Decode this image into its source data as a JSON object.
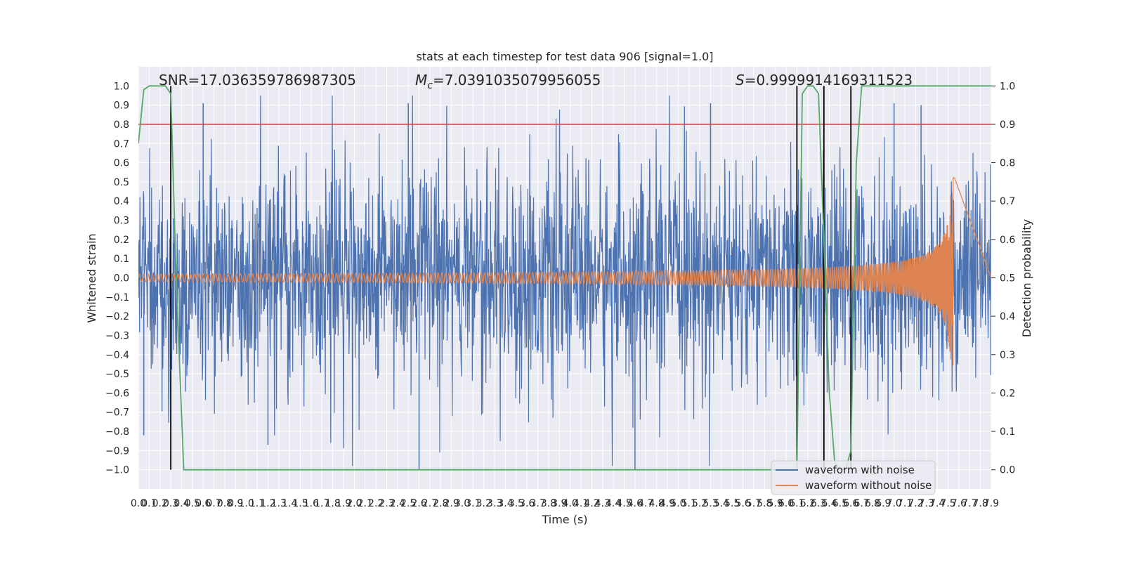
{
  "chart_data": {
    "type": "line",
    "title": "stats at each timestep for test data 906 [signal=1.0]",
    "xlabel": "Time (s)",
    "ylabel_left": "Whitened strain",
    "ylabel_right": "Detection probability",
    "xlim": [
      0.0,
      7.9
    ],
    "ylim_left": [
      -1.1,
      1.1
    ],
    "ylim_right": [
      -0.05,
      1.05
    ],
    "x_ticks": [
      "0.0",
      "0.1",
      "0.2",
      "0.3",
      "0.4",
      "0.5",
      "0.6",
      "0.7",
      "0.8",
      "0.9",
      "1.0",
      "1.1",
      "1.2",
      "1.3",
      "1.4",
      "1.5",
      "1.6",
      "1.7",
      "1.8",
      "1.9",
      "2.0",
      "2.1",
      "2.2",
      "2.3",
      "2.4",
      "2.5",
      "2.6",
      "2.7",
      "2.8",
      "2.9",
      "3.0",
      "3.1",
      "3.2",
      "3.3",
      "3.4",
      "3.5",
      "3.6",
      "3.7",
      "3.8",
      "3.9",
      "4.0",
      "4.1",
      "4.2",
      "4.3",
      "4.4",
      "4.5",
      "4.6",
      "4.7",
      "4.8",
      "4.9",
      "5.0",
      "5.1",
      "5.2",
      "5.3",
      "5.4",
      "5.5",
      "5.6",
      "5.7",
      "5.8",
      "5.9",
      "6.0",
      "6.1",
      "6.2",
      "6.3",
      "6.4",
      "6.5",
      "6.6",
      "6.7",
      "6.8",
      "6.9",
      "7.0",
      "7.1",
      "7.2",
      "7.3",
      "7.4",
      "7.5",
      "7.6",
      "7.7",
      "7.8",
      "7.9"
    ],
    "y_ticks_left": [
      "−1.0",
      "−0.9",
      "−0.8",
      "−0.7",
      "−0.6",
      "−0.5",
      "−0.4",
      "−0.3",
      "−0.2",
      "−0.1",
      "0.0",
      "0.1",
      "0.2",
      "0.3",
      "0.4",
      "0.5",
      "0.6",
      "0.7",
      "0.8",
      "0.9",
      "1.0"
    ],
    "y_ticks_right": [
      "0.0",
      "0.1",
      "0.2",
      "0.3",
      "0.4",
      "0.5",
      "0.6",
      "0.7",
      "0.8",
      "0.9",
      "1.0"
    ],
    "annotations": {
      "snr": "SNR=17.036359786987305",
      "mc_symbol": "M",
      "mc_sub": "c",
      "mc_value": "=7.0391035079956055",
      "s_symbol": "S",
      "s_value": "=0.9999914169311523"
    },
    "threshold_right_axis": 0.9,
    "vertical_markers_x": [
      0.3,
      6.1,
      6.35,
      6.6
    ],
    "series": [
      {
        "name": "waveform with noise",
        "color": "#4c72b0",
        "noise_scale": 0.5,
        "notable_spikes": [
          [
            0.6,
            0.91
          ],
          [
            2.5,
            0.91
          ],
          [
            5.3,
            0.91
          ],
          [
            7.0,
            0.91
          ],
          [
            7.25,
            0.9
          ],
          [
            2.6,
            -1.0
          ],
          [
            4.6,
            -1.0
          ],
          [
            0.05,
            -0.82
          ],
          [
            1.2,
            -0.87
          ]
        ]
      },
      {
        "name": "waveform without noise",
        "color": "#dd8452",
        "chirp_amplitude_start": 0.02,
        "chirp_peak_time": 7.55,
        "chirp_peak_amplitude": 0.45,
        "chirp_min_amplitude": -0.6
      },
      {
        "name": "detection probability",
        "color": "#55a868",
        "axis": "right",
        "x": [
          0.0,
          0.05,
          0.1,
          0.15,
          0.2,
          0.25,
          0.3,
          0.35,
          0.42,
          0.5,
          6.0,
          6.1,
          6.15,
          6.2,
          6.25,
          6.3,
          6.35,
          6.4,
          6.45,
          6.5,
          6.55,
          6.6,
          6.65,
          6.7,
          6.75,
          7.9
        ],
        "y": [
          0.85,
          0.99,
          1.0,
          1.0,
          1.0,
          1.0,
          0.98,
          0.5,
          0.0,
          0.0,
          0.0,
          0.0,
          0.98,
          1.0,
          1.0,
          0.98,
          0.6,
          0.2,
          0.02,
          0.0,
          0.0,
          0.05,
          0.8,
          1.0,
          1.0,
          1.0
        ]
      }
    ],
    "legend": {
      "placement": "lower right",
      "entries": [
        "waveform with noise",
        "waveform without noise"
      ]
    },
    "colors": {
      "plot_bg": "#eaeaf2",
      "grid": "#ffffff",
      "threshold": "#c44e52",
      "marker": "#000000"
    }
  }
}
